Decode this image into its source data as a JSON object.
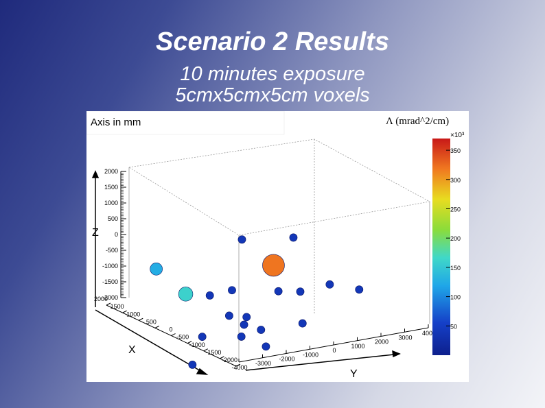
{
  "slide": {
    "title": "Scenario 2 Results",
    "subtitle_line1": "10 minutes exposure",
    "subtitle_line2": "5cmx5cmx5cm voxels"
  },
  "chart_data": {
    "type": "scatter",
    "title": "Axis in mm",
    "colorbar_label": "Λ (mrad^2/cm)",
    "colorbar_multiplier": "×10³",
    "colorbar_ticks": [
      50,
      100,
      150,
      200,
      250,
      300,
      350
    ],
    "colorbar_range": [
      0,
      370
    ],
    "xlabel": "X",
    "ylabel": "Y",
    "zlabel": "Z",
    "x_ticks": [
      2000,
      1500,
      1000,
      500,
      0,
      -500,
      -1000,
      -1500,
      -2000
    ],
    "y_ticks": [
      -4000,
      -3000,
      -2000,
      -1000,
      0,
      1000,
      2000,
      3000,
      4000
    ],
    "z_ticks": [
      2000,
      1500,
      1000,
      500,
      0,
      -500,
      -1000,
      -1500,
      -2000
    ],
    "points": [
      {
        "x": 1800,
        "y": -3200,
        "z": 1250,
        "v": 125
      },
      {
        "x": 1200,
        "y": -2600,
        "z": 100,
        "v": 160
      },
      {
        "x": 200,
        "y": -1300,
        "z": 1300,
        "v": 40
      },
      {
        "x": -800,
        "y": -200,
        "z": 800,
        "v": 40
      },
      {
        "x": 1000,
        "y": -1800,
        "z": -100,
        "v": 40
      },
      {
        "x": -200,
        "y": -400,
        "z": 200,
        "v": 320
      },
      {
        "x": 500,
        "y": -1400,
        "z": -200,
        "v": 40
      },
      {
        "x": 300,
        "y": -1000,
        "z": -1200,
        "v": 40
      },
      {
        "x": -300,
        "y": -300,
        "z": -700,
        "v": 40
      },
      {
        "x": -600,
        "y": 300,
        "z": -900,
        "v": 40
      },
      {
        "x": 1300,
        "y": -1800,
        "z": -1300,
        "v": 40
      },
      {
        "x": 600,
        "y": -900,
        "z": -1700,
        "v": 40
      },
      {
        "x": -500,
        "y": 500,
        "z": -1900,
        "v": 40
      },
      {
        "x": 800,
        "y": -1200,
        "z": -900,
        "v": 40
      },
      {
        "x": 400,
        "y": -1000,
        "z": -1400,
        "v": 40
      },
      {
        "x": 200,
        "y": -500,
        "z": -1700,
        "v": 40
      },
      {
        "x": -1200,
        "y": 900,
        "z": -1000,
        "v": 40
      },
      {
        "x": -1800,
        "y": 1500,
        "z": -1500,
        "v": 40
      },
      {
        "x": 1500,
        "y": -2000,
        "z": -2100,
        "v": 40
      },
      {
        "x": 100,
        "y": -400,
        "z": -2300,
        "v": 40
      }
    ]
  }
}
